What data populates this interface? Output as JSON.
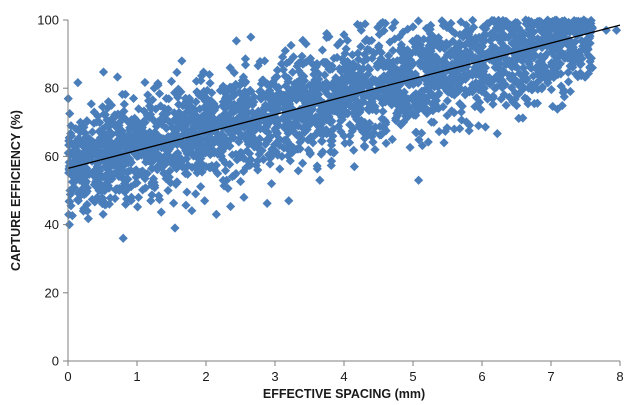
{
  "chart_data": {
    "type": "scatter",
    "title": "",
    "xlabel": "EFFECTIVE SPACING (mm)",
    "ylabel": "CAPTURE  EFFICIENCY (%)",
    "xlim": [
      0,
      8
    ],
    "ylim": [
      0,
      100
    ],
    "x_ticks": [
      "0",
      "1",
      "2",
      "3",
      "4",
      "5",
      "6",
      "7",
      "8"
    ],
    "y_ticks": [
      "0",
      "20",
      "40",
      "60",
      "80",
      "100"
    ],
    "grid": false,
    "legend": "none",
    "marker": "diamond",
    "marker_color": "#4a7ebb",
    "trendline": {
      "type": "linear",
      "color": "#000000",
      "start": {
        "x": 0,
        "y": 56.5
      },
      "end": {
        "x": 8,
        "y": 98.5
      }
    },
    "series": [
      {
        "points": [
          {
            "x": 0.02,
            "y": 40
          },
          {
            "x": 0.03,
            "y": 50
          },
          {
            "x": 0.05,
            "y": 66
          },
          {
            "x": 0.08,
            "y": 56
          },
          {
            "x": 0.12,
            "y": 62
          },
          {
            "x": 0.15,
            "y": 47
          },
          {
            "x": 0.18,
            "y": 70
          },
          {
            "x": 0.2,
            "y": 58
          },
          {
            "x": 0.25,
            "y": 52
          },
          {
            "x": 0.28,
            "y": 44
          },
          {
            "x": 0.32,
            "y": 65
          },
          {
            "x": 0.35,
            "y": 60
          },
          {
            "x": 0.38,
            "y": 73
          },
          {
            "x": 0.42,
            "y": 55
          },
          {
            "x": 0.45,
            "y": 50
          },
          {
            "x": 0.5,
            "y": 68
          },
          {
            "x": 0.55,
            "y": 62
          },
          {
            "x": 0.6,
            "y": 46
          },
          {
            "x": 0.63,
            "y": 75
          },
          {
            "x": 0.7,
            "y": 57
          },
          {
            "x": 0.75,
            "y": 70
          },
          {
            "x": 0.8,
            "y": 36
          },
          {
            "x": 0.82,
            "y": 52
          },
          {
            "x": 0.88,
            "y": 64
          },
          {
            "x": 0.92,
            "y": 48
          },
          {
            "x": 0.95,
            "y": 77
          },
          {
            "x": 1.0,
            "y": 60
          },
          {
            "x": 1.05,
            "y": 68
          },
          {
            "x": 1.1,
            "y": 54
          },
          {
            "x": 1.15,
            "y": 72
          },
          {
            "x": 1.2,
            "y": 47
          },
          {
            "x": 1.25,
            "y": 80
          },
          {
            "x": 1.3,
            "y": 63
          },
          {
            "x": 1.35,
            "y": 58
          },
          {
            "x": 1.4,
            "y": 74
          },
          {
            "x": 1.45,
            "y": 50
          },
          {
            "x": 1.5,
            "y": 82
          },
          {
            "x": 1.55,
            "y": 39
          },
          {
            "x": 1.6,
            "y": 66
          },
          {
            "x": 1.65,
            "y": 88
          },
          {
            "x": 1.7,
            "y": 55
          },
          {
            "x": 1.75,
            "y": 71
          },
          {
            "x": 1.8,
            "y": 61
          },
          {
            "x": 1.85,
            "y": 49
          },
          {
            "x": 1.9,
            "y": 78
          },
          {
            "x": 1.95,
            "y": 65
          },
          {
            "x": 2.0,
            "y": 57
          },
          {
            "x": 2.05,
            "y": 84
          },
          {
            "x": 2.1,
            "y": 70
          },
          {
            "x": 2.15,
            "y": 43
          },
          {
            "x": 2.2,
            "y": 62
          },
          {
            "x": 2.25,
            "y": 76
          },
          {
            "x": 2.3,
            "y": 53
          },
          {
            "x": 2.35,
            "y": 86
          },
          {
            "x": 2.4,
            "y": 68
          },
          {
            "x": 2.45,
            "y": 59
          },
          {
            "x": 2.5,
            "y": 81
          },
          {
            "x": 2.55,
            "y": 48
          },
          {
            "x": 2.6,
            "y": 73
          },
          {
            "x": 2.65,
            "y": 95
          },
          {
            "x": 2.7,
            "y": 64
          },
          {
            "x": 2.75,
            "y": 56
          },
          {
            "x": 2.8,
            "y": 79
          },
          {
            "x": 2.85,
            "y": 88
          },
          {
            "x": 2.9,
            "y": 67
          },
          {
            "x": 2.95,
            "y": 52
          },
          {
            "x": 3.0,
            "y": 83
          },
          {
            "x": 3.05,
            "y": 74
          },
          {
            "x": 3.1,
            "y": 60
          },
          {
            "x": 3.15,
            "y": 91
          },
          {
            "x": 3.2,
            "y": 47
          },
          {
            "x": 3.25,
            "y": 77
          },
          {
            "x": 3.3,
            "y": 69
          },
          {
            "x": 3.35,
            "y": 85
          },
          {
            "x": 3.4,
            "y": 58
          },
          {
            "x": 3.45,
            "y": 93
          },
          {
            "x": 3.5,
            "y": 72
          },
          {
            "x": 3.55,
            "y": 64
          },
          {
            "x": 3.6,
            "y": 87
          },
          {
            "x": 3.65,
            "y": 53
          },
          {
            "x": 3.7,
            "y": 80
          },
          {
            "x": 3.75,
            "y": 96
          },
          {
            "x": 3.8,
            "y": 70
          },
          {
            "x": 3.85,
            "y": 61
          },
          {
            "x": 3.9,
            "y": 89
          },
          {
            "x": 3.95,
            "y": 76
          },
          {
            "x": 4.0,
            "y": 66
          },
          {
            "x": 4.05,
            "y": 94
          },
          {
            "x": 4.1,
            "y": 83
          },
          {
            "x": 4.15,
            "y": 57
          },
          {
            "x": 4.2,
            "y": 75
          },
          {
            "x": 4.25,
            "y": 97
          },
          {
            "x": 4.3,
            "y": 68
          },
          {
            "x": 4.35,
            "y": 86
          },
          {
            "x": 4.4,
            "y": 79
          },
          {
            "x": 4.45,
            "y": 62
          },
          {
            "x": 4.5,
            "y": 92
          },
          {
            "x": 4.55,
            "y": 71
          },
          {
            "x": 4.6,
            "y": 99
          },
          {
            "x": 4.65,
            "y": 84
          },
          {
            "x": 4.7,
            "y": 65
          },
          {
            "x": 4.75,
            "y": 77
          },
          {
            "x": 4.8,
            "y": 95
          },
          {
            "x": 4.85,
            "y": 88
          },
          {
            "x": 4.9,
            "y": 72
          },
          {
            "x": 4.95,
            "y": 81
          },
          {
            "x": 5.0,
            "y": 98
          },
          {
            "x": 5.05,
            "y": 67
          },
          {
            "x": 5.1,
            "y": 90
          },
          {
            "x": 5.15,
            "y": 76
          },
          {
            "x": 5.2,
            "y": 85
          },
          {
            "x": 5.25,
            "y": 96
          },
          {
            "x": 5.3,
            "y": 70
          },
          {
            "x": 5.35,
            "y": 82
          },
          {
            "x": 5.4,
            "y": 93
          },
          {
            "x": 5.45,
            "y": 64
          },
          {
            "x": 5.5,
            "y": 87
          },
          {
            "x": 5.55,
            "y": 99
          },
          {
            "x": 5.6,
            "y": 78
          },
          {
            "x": 5.65,
            "y": 91
          },
          {
            "x": 5.7,
            "y": 73
          },
          {
            "x": 5.75,
            "y": 84
          },
          {
            "x": 5.8,
            "y": 97
          },
          {
            "x": 5.85,
            "y": 80
          },
          {
            "x": 5.9,
            "y": 89
          },
          {
            "x": 5.95,
            "y": 69
          },
          {
            "x": 6.0,
            "y": 94
          },
          {
            "x": 6.05,
            "y": 86
          },
          {
            "x": 6.1,
            "y": 99
          },
          {
            "x": 6.15,
            "y": 77
          },
          {
            "x": 6.2,
            "y": 91
          },
          {
            "x": 6.25,
            "y": 83
          },
          {
            "x": 6.3,
            "y": 96
          },
          {
            "x": 6.35,
            "y": 75
          },
          {
            "x": 6.4,
            "y": 88
          },
          {
            "x": 6.45,
            "y": 93
          },
          {
            "x": 6.5,
            "y": 82
          },
          {
            "x": 6.55,
            "y": 97
          },
          {
            "x": 6.6,
            "y": 86
          },
          {
            "x": 6.7,
            "y": 92
          },
          {
            "x": 6.75,
            "y": 80
          },
          {
            "x": 6.8,
            "y": 99
          },
          {
            "x": 6.9,
            "y": 89
          },
          {
            "x": 7.0,
            "y": 94
          },
          {
            "x": 7.1,
            "y": 84
          },
          {
            "x": 7.2,
            "y": 96
          },
          {
            "x": 7.3,
            "y": 98
          },
          {
            "x": 7.4,
            "y": 90
          },
          {
            "x": 7.5,
            "y": 93
          },
          {
            "x": 7.6,
            "y": 86
          },
          {
            "x": 7.8,
            "y": 97
          },
          {
            "x": 7.95,
            "y": 97
          }
        ]
      }
    ]
  }
}
